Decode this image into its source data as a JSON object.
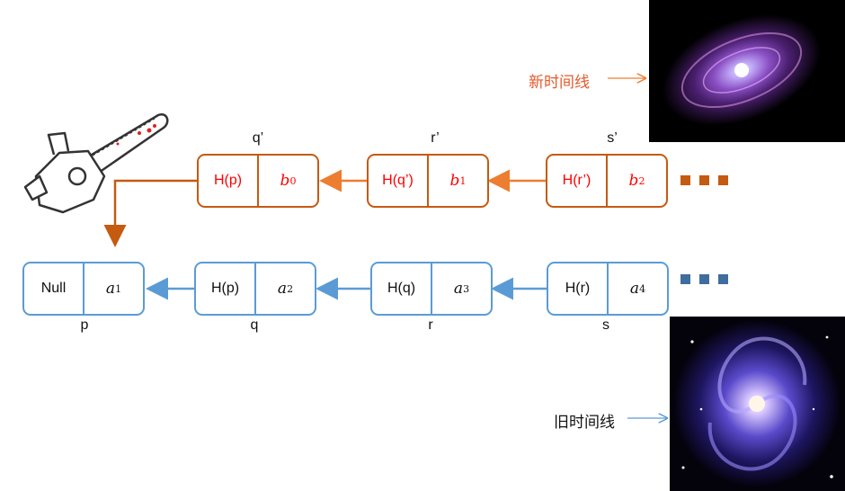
{
  "new_chain": {
    "nodes": [
      {
        "hash": "H(p)",
        "val": "b",
        "sub": "0",
        "label": "q’"
      },
      {
        "hash": "H(q’)",
        "val": "b",
        "sub": "1",
        "label": "r’"
      },
      {
        "hash": "H(r’)",
        "val": "b",
        "sub": "2",
        "label": "s’"
      }
    ],
    "color": "#c55a11"
  },
  "old_chain": {
    "nodes": [
      {
        "hash": "Null",
        "val": "a",
        "sub": "1",
        "label": "p"
      },
      {
        "hash": "H(p)",
        "val": "a",
        "sub": "2",
        "label": "q"
      },
      {
        "hash": "H(q)",
        "val": "a",
        "sub": "3",
        "label": "r"
      },
      {
        "hash": "H(r)",
        "val": "a",
        "sub": "4",
        "label": "s"
      }
    ],
    "color": "#5b9bd5"
  },
  "timelines": {
    "new": "新时间线",
    "old": "旧时间线"
  },
  "images": {
    "chainsaw": "chainsaw-icon",
    "galaxy_top": "spiral-galaxy-image",
    "galaxy_bottom": "spiral-galaxy-image"
  }
}
